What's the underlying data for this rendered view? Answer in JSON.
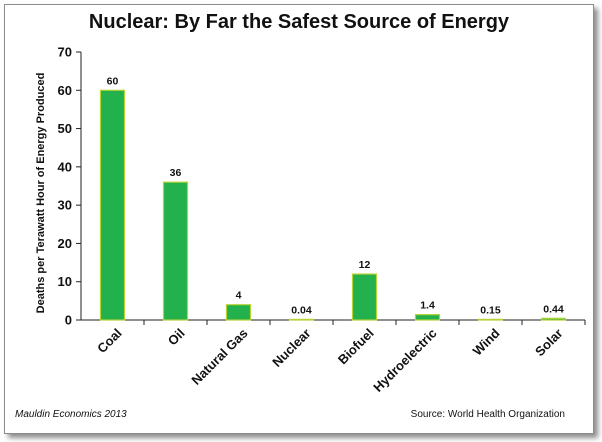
{
  "chart_data": {
    "type": "bar",
    "title": "Nuclear: By Far the Safest Source of Energy",
    "ylabel": "Deaths per Terawatt Hour of Energy Produced",
    "xlabel": "",
    "categories": [
      "Coal",
      "Oil",
      "Natural Gas",
      "Nuclear",
      "Biofuel",
      "Hydroelectric",
      "Wind",
      "Solar"
    ],
    "values": [
      60,
      36,
      4,
      0.04,
      12,
      1.4,
      0.15,
      0.44
    ],
    "data_labels": [
      "60",
      "36",
      "4",
      "0.04",
      "12",
      "1.4",
      "0.15",
      "0.44"
    ],
    "ylim": [
      0,
      70
    ],
    "yticks": [
      0,
      10,
      20,
      30,
      40,
      50,
      60,
      70
    ],
    "grid": false,
    "legend": "none",
    "bar_color": "#22b14c",
    "bar_edge_color": "#b5d335"
  },
  "footer": {
    "credit": "Mauldin Economics 2013",
    "source": "Source: World Health Organization"
  }
}
